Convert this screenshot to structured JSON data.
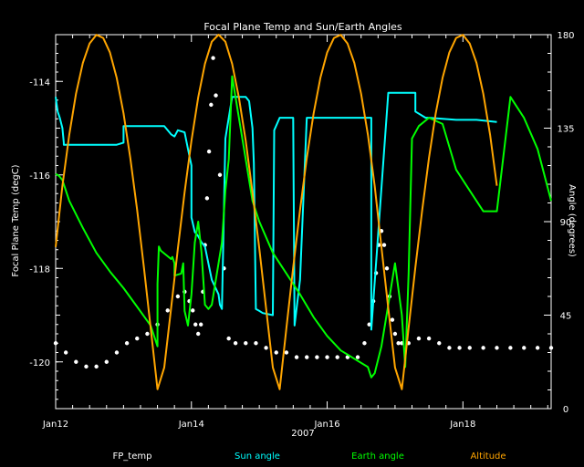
{
  "chart_data": {
    "type": "line",
    "title": "Focal Plane Temp and Sun/Earth Angles",
    "xlabel": "2007",
    "ylabel_left": "Focal Plane Temp (degC)",
    "ylabel_right": "Angle (degrees)",
    "xlim": [
      12.0,
      19.3
    ],
    "ylim_left": [
      -121.0,
      -113.0
    ],
    "ylim_right": [
      0,
      180
    ],
    "x_ticks": [
      12,
      14,
      16,
      18
    ],
    "x_tick_labels": [
      "Jan12",
      "Jan14",
      "Jan16",
      "Jan18"
    ],
    "y_left_ticks": [
      -120,
      -119,
      -118,
      -117,
      -116,
      -115,
      -114
    ],
    "y_left_tick_labels": [
      "-120",
      "",
      "-118",
      "",
      "-116",
      "",
      "-114"
    ],
    "y_right_ticks": [
      0,
      45,
      90,
      135,
      180
    ],
    "y_right_tick_labels": [
      "0",
      "45",
      "90",
      "135",
      "180"
    ],
    "grid": false,
    "legend_placement": "bottom",
    "legend": [
      {
        "name": "FP_temp",
        "color": "#ffffff"
      },
      {
        "name": "Sun angle",
        "color": "#00ffff"
      },
      {
        "name": "Earth angle",
        "color": "#00ff00"
      },
      {
        "name": "Altitude",
        "color": "#ffa500"
      }
    ],
    "series": [
      {
        "name": "FP_temp",
        "axis": "left",
        "style": "points",
        "color": "#ffffff",
        "x": [
          12.0,
          12.15,
          12.3,
          12.45,
          12.6,
          12.75,
          12.9,
          13.05,
          13.2,
          13.35,
          13.5,
          13.65,
          13.8,
          13.9,
          13.97,
          14.02,
          14.06,
          14.1,
          14.14,
          14.17,
          14.2,
          14.23,
          14.26,
          14.29,
          14.32,
          14.36,
          14.42,
          14.48,
          14.55,
          14.65,
          14.8,
          14.95,
          15.1,
          15.25,
          15.4,
          15.55,
          15.7,
          15.85,
          16.0,
          16.15,
          16.3,
          16.45,
          16.55,
          16.62,
          16.68,
          16.72,
          16.76,
          16.8,
          16.84,
          16.88,
          16.92,
          16.96,
          17.0,
          17.05,
          17.1,
          17.2,
          17.35,
          17.5,
          17.65,
          17.8,
          17.95,
          18.1,
          18.3,
          18.5,
          18.7,
          18.9,
          19.1,
          19.3
        ],
        "y": [
          -119.6,
          -119.8,
          -120.0,
          -120.1,
          -120.1,
          -120.0,
          -119.8,
          -119.6,
          -119.5,
          -119.4,
          -119.2,
          -118.9,
          -118.6,
          -118.5,
          -118.7,
          -118.9,
          -119.2,
          -119.4,
          -119.2,
          -118.5,
          -117.5,
          -116.5,
          -115.5,
          -114.5,
          -113.5,
          -114.3,
          -116.0,
          -118.0,
          -119.5,
          -119.6,
          -119.6,
          -119.6,
          -119.7,
          -119.8,
          -119.8,
          -119.9,
          -119.9,
          -119.9,
          -119.9,
          -119.9,
          -119.9,
          -119.9,
          -119.6,
          -119.2,
          -118.7,
          -118.1,
          -117.5,
          -117.2,
          -117.5,
          -118.0,
          -118.6,
          -119.1,
          -119.4,
          -119.6,
          -119.6,
          -119.6,
          -119.5,
          -119.5,
          -119.6,
          -119.7,
          -119.7,
          -119.7,
          -119.7,
          -119.7,
          -119.7,
          -119.7,
          -119.7,
          -119.7
        ]
      },
      {
        "name": "Sun angle",
        "axis": "right",
        "style": "line",
        "color": "#00ffff",
        "x": [
          12.0,
          12.03,
          12.06,
          12.1,
          12.12,
          12.12,
          12.3,
          12.6,
          12.9,
          13.0,
          13.0,
          13.3,
          13.6,
          13.7,
          13.75,
          13.8,
          13.9,
          13.95,
          14.0,
          14.0,
          14.05,
          14.1,
          14.15,
          14.2,
          14.3,
          14.4,
          14.42,
          14.45,
          14.5,
          14.6,
          14.8,
          14.85,
          14.9,
          14.92,
          14.95,
          15.0,
          15.05,
          15.2,
          15.22,
          15.3,
          15.4,
          15.5,
          15.52,
          15.6,
          15.7,
          16.0,
          16.3,
          16.6,
          16.65,
          16.65,
          16.9,
          17.2,
          17.3,
          17.3,
          17.45,
          17.5,
          17.9,
          18.2,
          18.5
        ],
        "y": [
          150,
          143,
          140,
          135,
          128,
          127,
          127,
          127,
          127,
          128,
          136,
          136,
          136,
          132,
          131,
          134,
          133,
          125,
          117,
          92,
          85,
          83,
          80,
          78,
          62,
          55,
          50,
          48,
          130,
          150,
          150,
          148,
          135,
          118,
          48,
          47,
          46,
          45,
          134,
          140,
          140,
          140,
          40,
          62,
          140,
          140,
          140,
          140,
          140,
          38,
          152,
          152,
          152,
          143,
          140,
          140,
          139,
          139,
          138
        ]
      },
      {
        "name": "Earth angle",
        "axis": "right",
        "style": "line",
        "color": "#00ff00",
        "x": [
          12.0,
          12.05,
          12.1,
          12.2,
          12.4,
          12.6,
          12.8,
          13.0,
          13.2,
          13.4,
          13.5,
          13.5,
          13.52,
          13.55,
          13.7,
          13.72,
          13.75,
          13.75,
          13.85,
          13.88,
          13.9,
          13.95,
          14.0,
          14.05,
          14.1,
          14.15,
          14.2,
          14.25,
          14.3,
          14.35,
          14.4,
          14.45,
          14.5,
          14.55,
          14.6,
          14.7,
          14.8,
          14.9,
          15.0,
          15.2,
          15.4,
          15.6,
          15.8,
          16.0,
          16.2,
          16.4,
          16.6,
          16.65,
          16.7,
          16.8,
          16.9,
          17.0,
          17.1,
          17.15,
          17.2,
          17.25,
          17.35,
          17.5,
          17.7,
          17.9,
          18.1,
          18.3,
          18.5,
          18.7,
          18.9,
          19.1,
          19.3
        ],
        "y": [
          113,
          112,
          110,
          100,
          87,
          75,
          66,
          58,
          49,
          40,
          30,
          60,
          78,
          76,
          72,
          73,
          70,
          64,
          65,
          70,
          47,
          40,
          55,
          80,
          90,
          75,
          50,
          48,
          50,
          60,
          70,
          80,
          105,
          120,
          160,
          140,
          120,
          100,
          90,
          75,
          65,
          55,
          44,
          35,
          28,
          24,
          20,
          15,
          17,
          30,
          50,
          70,
          45,
          20,
          65,
          130,
          136,
          140,
          137,
          115,
          105,
          95,
          95,
          150,
          140,
          125,
          100
        ]
      },
      {
        "name": "Altitude",
        "axis": "right",
        "style": "line",
        "color": "#ffa500",
        "x": [
          12.0,
          12.1,
          12.2,
          12.3,
          12.4,
          12.5,
          12.6,
          12.7,
          12.8,
          12.9,
          13.0,
          13.1,
          13.2,
          13.3,
          13.4,
          13.5,
          13.6,
          13.7,
          13.8,
          13.9,
          14.0,
          14.1,
          14.2,
          14.3,
          14.4,
          14.5,
          14.6,
          14.7,
          14.8,
          14.9,
          15.0,
          15.1,
          15.2,
          15.3,
          15.4,
          15.5,
          15.6,
          15.7,
          15.8,
          15.9,
          16.0,
          16.1,
          16.2,
          16.3,
          16.4,
          16.5,
          16.6,
          16.7,
          16.8,
          16.9,
          17.0,
          17.1,
          17.2,
          17.3,
          17.4,
          17.5,
          17.6,
          17.7,
          17.8,
          17.9,
          18.0,
          18.1,
          18.2,
          18.3,
          18.4,
          18.5
        ],
        "y": [
          77.8,
          107.3,
          131.8,
          151.6,
          166.4,
          175.8,
          179.9,
          178.4,
          171.4,
          159.2,
          142.1,
          120.6,
          95.6,
          68.0,
          38.9,
          9.3,
          19.8,
          48.3,
          76.9,
          104.1,
          128.9,
          149.8,
          166.0,
          176.6,
          180,
          176.6,
          166.0,
          149.8,
          128.9,
          104.1,
          76.9,
          48.3,
          19.8,
          9.3,
          38.9,
          68.0,
          95.6,
          120.6,
          142.1,
          159.2,
          171.4,
          178.4,
          179.9,
          175.8,
          166.4,
          151.6,
          131.8,
          107.3,
          77.8,
          48.3,
          19.8,
          9.3,
          38.9,
          68.0,
          95.6,
          120.6,
          142.1,
          159.2,
          171.4,
          178.4,
          179.9,
          175.8,
          166.4,
          151.6,
          131.8,
          107.3
        ]
      }
    ]
  }
}
